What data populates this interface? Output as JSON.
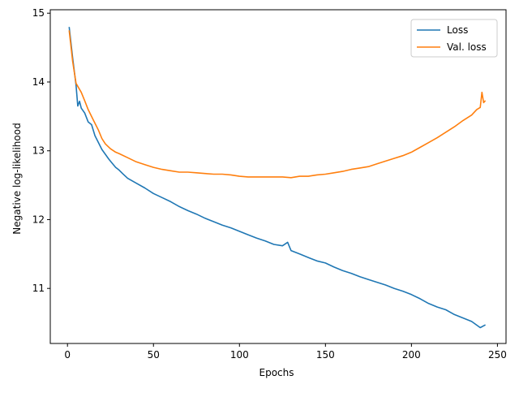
{
  "chart_data": {
    "type": "line",
    "title": "",
    "xlabel": "Epochs",
    "ylabel": "Negative log-likelihood",
    "xlim": [
      -10,
      255
    ],
    "ylim": [
      10.2,
      15.05
    ],
    "xticks": [
      0,
      50,
      100,
      150,
      200,
      250
    ],
    "yticks": [
      11,
      12,
      13,
      14,
      15
    ],
    "grid": false,
    "legend_position": "top-right",
    "series": [
      {
        "name": "Loss",
        "color": "#1f77b4",
        "points": [
          [
            1,
            14.8
          ],
          [
            3,
            14.35
          ],
          [
            5,
            13.95
          ],
          [
            6,
            13.65
          ],
          [
            7,
            13.72
          ],
          [
            8,
            13.62
          ],
          [
            10,
            13.55
          ],
          [
            12,
            13.42
          ],
          [
            14,
            13.38
          ],
          [
            16,
            13.22
          ],
          [
            18,
            13.12
          ],
          [
            20,
            13.02
          ],
          [
            22,
            12.95
          ],
          [
            24,
            12.88
          ],
          [
            26,
            12.82
          ],
          [
            28,
            12.76
          ],
          [
            30,
            12.72
          ],
          [
            32,
            12.67
          ],
          [
            35,
            12.6
          ],
          [
            40,
            12.53
          ],
          [
            45,
            12.46
          ],
          [
            50,
            12.38
          ],
          [
            55,
            12.32
          ],
          [
            60,
            12.26
          ],
          [
            65,
            12.19
          ],
          [
            70,
            12.13
          ],
          [
            75,
            12.08
          ],
          [
            80,
            12.02
          ],
          [
            85,
            11.97
          ],
          [
            90,
            11.92
          ],
          [
            95,
            11.88
          ],
          [
            100,
            11.83
          ],
          [
            105,
            11.78
          ],
          [
            110,
            11.73
          ],
          [
            115,
            11.69
          ],
          [
            120,
            11.64
          ],
          [
            125,
            11.62
          ],
          [
            128,
            11.67
          ],
          [
            130,
            11.55
          ],
          [
            135,
            11.5
          ],
          [
            140,
            11.45
          ],
          [
            145,
            11.4
          ],
          [
            150,
            11.37
          ],
          [
            155,
            11.31
          ],
          [
            160,
            11.26
          ],
          [
            165,
            11.22
          ],
          [
            170,
            11.17
          ],
          [
            175,
            11.13
          ],
          [
            180,
            11.09
          ],
          [
            185,
            11.05
          ],
          [
            190,
            11.0
          ],
          [
            195,
            10.96
          ],
          [
            200,
            10.91
          ],
          [
            205,
            10.85
          ],
          [
            210,
            10.78
          ],
          [
            215,
            10.73
          ],
          [
            220,
            10.69
          ],
          [
            225,
            10.62
          ],
          [
            230,
            10.57
          ],
          [
            235,
            10.52
          ],
          [
            240,
            10.43
          ],
          [
            243,
            10.47
          ]
        ]
      },
      {
        "name": "Val. loss",
        "color": "#ff7f0e",
        "points": [
          [
            1,
            14.75
          ],
          [
            3,
            14.3
          ],
          [
            5,
            13.98
          ],
          [
            8,
            13.85
          ],
          [
            10,
            13.73
          ],
          [
            12,
            13.6
          ],
          [
            15,
            13.45
          ],
          [
            18,
            13.3
          ],
          [
            20,
            13.18
          ],
          [
            22,
            13.1
          ],
          [
            25,
            13.03
          ],
          [
            28,
            12.98
          ],
          [
            30,
            12.96
          ],
          [
            35,
            12.9
          ],
          [
            40,
            12.84
          ],
          [
            45,
            12.8
          ],
          [
            50,
            12.76
          ],
          [
            55,
            12.73
          ],
          [
            60,
            12.71
          ],
          [
            65,
            12.69
          ],
          [
            70,
            12.69
          ],
          [
            75,
            12.68
          ],
          [
            80,
            12.67
          ],
          [
            85,
            12.66
          ],
          [
            90,
            12.66
          ],
          [
            95,
            12.65
          ],
          [
            100,
            12.63
          ],
          [
            105,
            12.62
          ],
          [
            110,
            12.62
          ],
          [
            115,
            12.62
          ],
          [
            120,
            12.62
          ],
          [
            125,
            12.62
          ],
          [
            130,
            12.61
          ],
          [
            135,
            12.63
          ],
          [
            140,
            12.63
          ],
          [
            145,
            12.65
          ],
          [
            150,
            12.66
          ],
          [
            155,
            12.68
          ],
          [
            160,
            12.7
          ],
          [
            165,
            12.73
          ],
          [
            170,
            12.75
          ],
          [
            175,
            12.77
          ],
          [
            180,
            12.81
          ],
          [
            185,
            12.85
          ],
          [
            190,
            12.89
          ],
          [
            195,
            12.93
          ],
          [
            200,
            12.98
          ],
          [
            205,
            13.05
          ],
          [
            210,
            13.12
          ],
          [
            215,
            13.19
          ],
          [
            220,
            13.27
          ],
          [
            225,
            13.35
          ],
          [
            230,
            13.44
          ],
          [
            235,
            13.52
          ],
          [
            238,
            13.6
          ],
          [
            240,
            13.63
          ],
          [
            241,
            13.85
          ],
          [
            242,
            13.7
          ],
          [
            243,
            13.73
          ]
        ]
      }
    ]
  }
}
